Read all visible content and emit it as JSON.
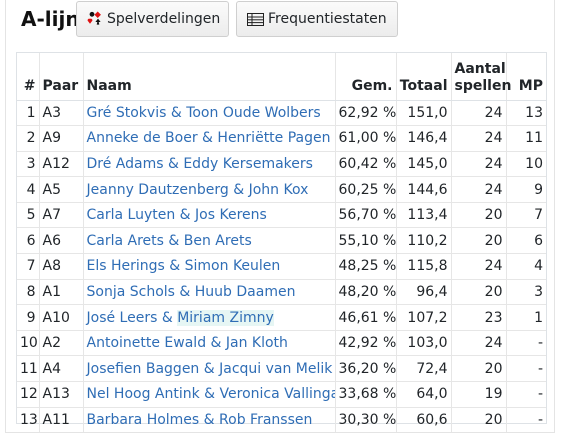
{
  "header": {
    "title": "A-lijn",
    "buttons": [
      {
        "label": "Spelverdelingen",
        "icon": "card-suits-icon"
      },
      {
        "label": "Frequentiestaten",
        "icon": "table-icon"
      }
    ]
  },
  "colors": {
    "link": "#2f6db5",
    "highlight": "#e6f6f4"
  },
  "table": {
    "columns": {
      "rank": "#",
      "pair": "Paar",
      "name": "Naam",
      "avg": "Gem.",
      "total": "Totaal",
      "boards_line1": "Aantal",
      "boards_line2": "spellen",
      "mp": "MP"
    },
    "rows": [
      {
        "rank": "1",
        "pair": "A3",
        "name": "Gré Stokvis & Toon Oude Wolbers",
        "avg": "62,92 %",
        "total": "151,0",
        "boards": "24",
        "mp": "13"
      },
      {
        "rank": "2",
        "pair": "A9",
        "name": "Anneke de Boer & Henriëtte Pagen",
        "avg": "61,00 %",
        "total": "146,4",
        "boards": "24",
        "mp": "11"
      },
      {
        "rank": "3",
        "pair": "A12",
        "name": "Dré Adams & Eddy Kersemakers",
        "avg": "60,42 %",
        "total": "145,0",
        "boards": "24",
        "mp": "10"
      },
      {
        "rank": "4",
        "pair": "A5",
        "name": "Jeanny Dautzenberg & John Kox",
        "avg": "60,25 %",
        "total": "144,6",
        "boards": "24",
        "mp": "9"
      },
      {
        "rank": "5",
        "pair": "A7",
        "name": "Carla Luyten & Jos Kerens",
        "avg": "56,70 %",
        "total": "113,4",
        "boards": "20",
        "mp": "7"
      },
      {
        "rank": "6",
        "pair": "A6",
        "name": "Carla Arets & Ben Arets",
        "avg": "55,10 %",
        "total": "110,2",
        "boards": "20",
        "mp": "6"
      },
      {
        "rank": "7",
        "pair": "A8",
        "name": "Els Herings & Simon Keulen",
        "avg": "48,25 %",
        "total": "115,8",
        "boards": "24",
        "mp": "4"
      },
      {
        "rank": "8",
        "pair": "A1",
        "name": "Sonja Schols & Huub Daamen",
        "avg": "48,20 %",
        "total": "96,4",
        "boards": "20",
        "mp": "3"
      },
      {
        "rank": "9",
        "pair": "A10",
        "name_a": "José Leers & ",
        "name_b": "Miriam Zimny",
        "avg": "46,61 %",
        "total": "107,2",
        "boards": "23",
        "mp": "1"
      },
      {
        "rank": "10",
        "pair": "A2",
        "name": "Antoinette Ewald & Jan Kloth",
        "avg": "42,92 %",
        "total": "103,0",
        "boards": "24",
        "mp": "-"
      },
      {
        "rank": "11",
        "pair": "A4",
        "name": "Josefien Baggen & Jacqui van Melik",
        "avg": "36,20 %",
        "total": "72,4",
        "boards": "20",
        "mp": "-"
      },
      {
        "rank": "12",
        "pair": "A13",
        "name": "Nel Hoog Antink & Veronica Vallinga",
        "avg": "33,68 %",
        "total": "64,0",
        "boards": "19",
        "mp": "-"
      },
      {
        "rank": "13",
        "pair": "A11",
        "name": "Barbara Holmes & Rob Franssen",
        "avg": "30,30 %",
        "total": "60,6",
        "boards": "20",
        "mp": "-"
      }
    ]
  }
}
